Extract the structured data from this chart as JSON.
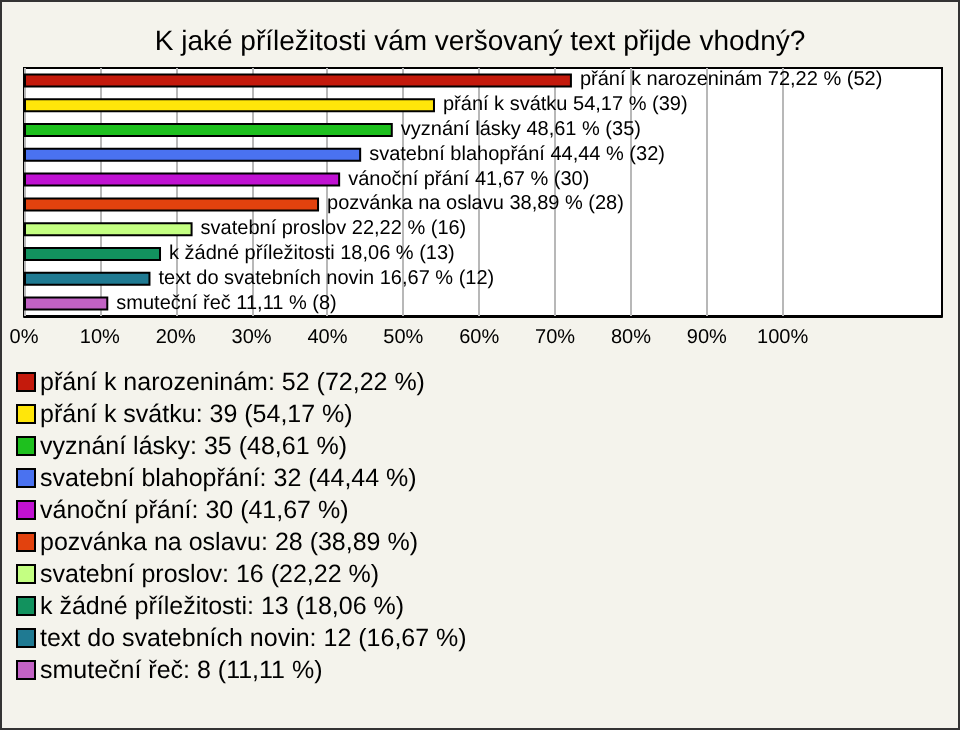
{
  "chart_data": {
    "type": "bar",
    "orientation": "horizontal",
    "title": "K jaké příležitosti vám veršovaný text přijde vhodný?",
    "categories": [
      null,
      null,
      null,
      null,
      null,
      null,
      null,
      null,
      null,
      null
    ],
    "values": [
      72.22,
      54.17,
      48.61,
      44.44,
      41.67,
      38.89,
      22.22,
      18.06,
      16.67,
      11.11
    ],
    "colors": [
      "#c41a0c",
      "#ffe60a",
      "#1ec01e",
      "#4a72f0",
      "#c012d2",
      "#e2420e",
      "#c4ff82",
      "#12925e",
      "#1f7a92",
      "#c262c4"
    ],
    "value_labels": [
      "přání k narozeninám 72,22 % (52)",
      "přání k svátku 54,17 % (39)",
      "vyznání lásky 48,61 % (35)",
      "svatební blahopřání 44,44 % (32)",
      "vánoční přání 41,67 % (30)",
      "pozvánka na oslavu 38,89 % (28)",
      "svatební proslov 22,22 % (16)",
      "k žádné příležitosti 18,06 % (13)",
      "text do svatebních novin 16,67 % (12)",
      "smuteční řeč 11,11 % (8)"
    ],
    "xlim": [
      0,
      121
    ],
    "xticks": [
      {
        "value": 0,
        "label": "0%"
      },
      {
        "value": 10,
        "label": "10%"
      },
      {
        "value": 20,
        "label": "20%"
      },
      {
        "value": 30,
        "label": "30%"
      },
      {
        "value": 40,
        "label": "40%"
      },
      {
        "value": 50,
        "label": "50%"
      },
      {
        "value": 60,
        "label": "60%"
      },
      {
        "value": 70,
        "label": "70%"
      },
      {
        "value": 80,
        "label": "80%"
      },
      {
        "value": 90,
        "label": "90%"
      },
      {
        "value": 100,
        "label": "100%"
      }
    ],
    "grid": "x",
    "tick_labels": "x",
    "annotations": [
      "přání k narozeninám: 52 (72,22 %)",
      "přání k svátku: 39 (54,17 %)",
      "vyznání lásky: 35 (48,61 %)",
      "svatební blahopřání: 32 (44,44 %)",
      "vánoční přání: 30 (41,67 %)",
      "pozvánka na oslavu: 28 (38,89 %)",
      "svatební proslov: 16 (22,22 %)",
      "k žádné příležitosti: 13 (18,06 %)",
      "text do svatebních novin: 12 (16,67 %)",
      "smuteční řeč: 8 (11,11 %)"
    ]
  }
}
